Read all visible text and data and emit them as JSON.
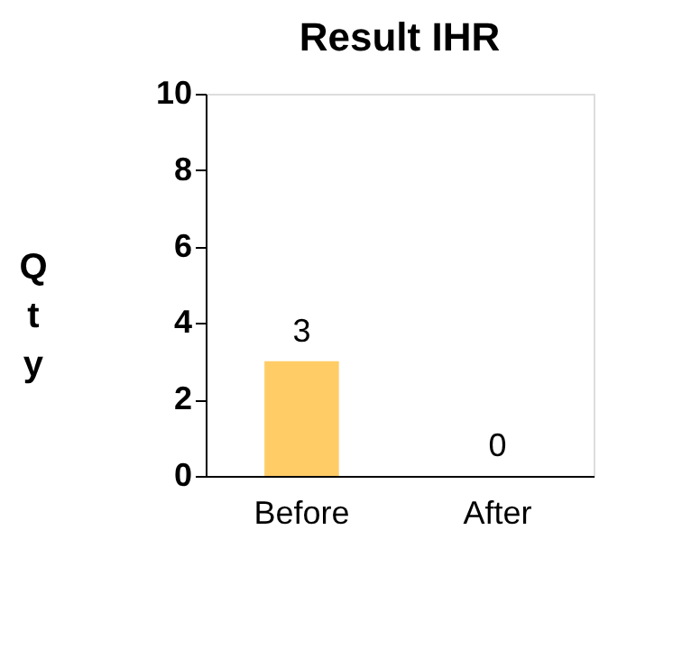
{
  "chart_data": {
    "type": "bar",
    "title": "Result  IHR",
    "ylabel": "Qty",
    "categories": [
      "Before",
      "After"
    ],
    "values": [
      3,
      0
    ],
    "color": "#ffcc66",
    "ylim": [
      0,
      10
    ],
    "yticks": [
      0,
      2,
      4,
      6,
      8,
      10
    ],
    "grid": false,
    "data_labels": true
  }
}
